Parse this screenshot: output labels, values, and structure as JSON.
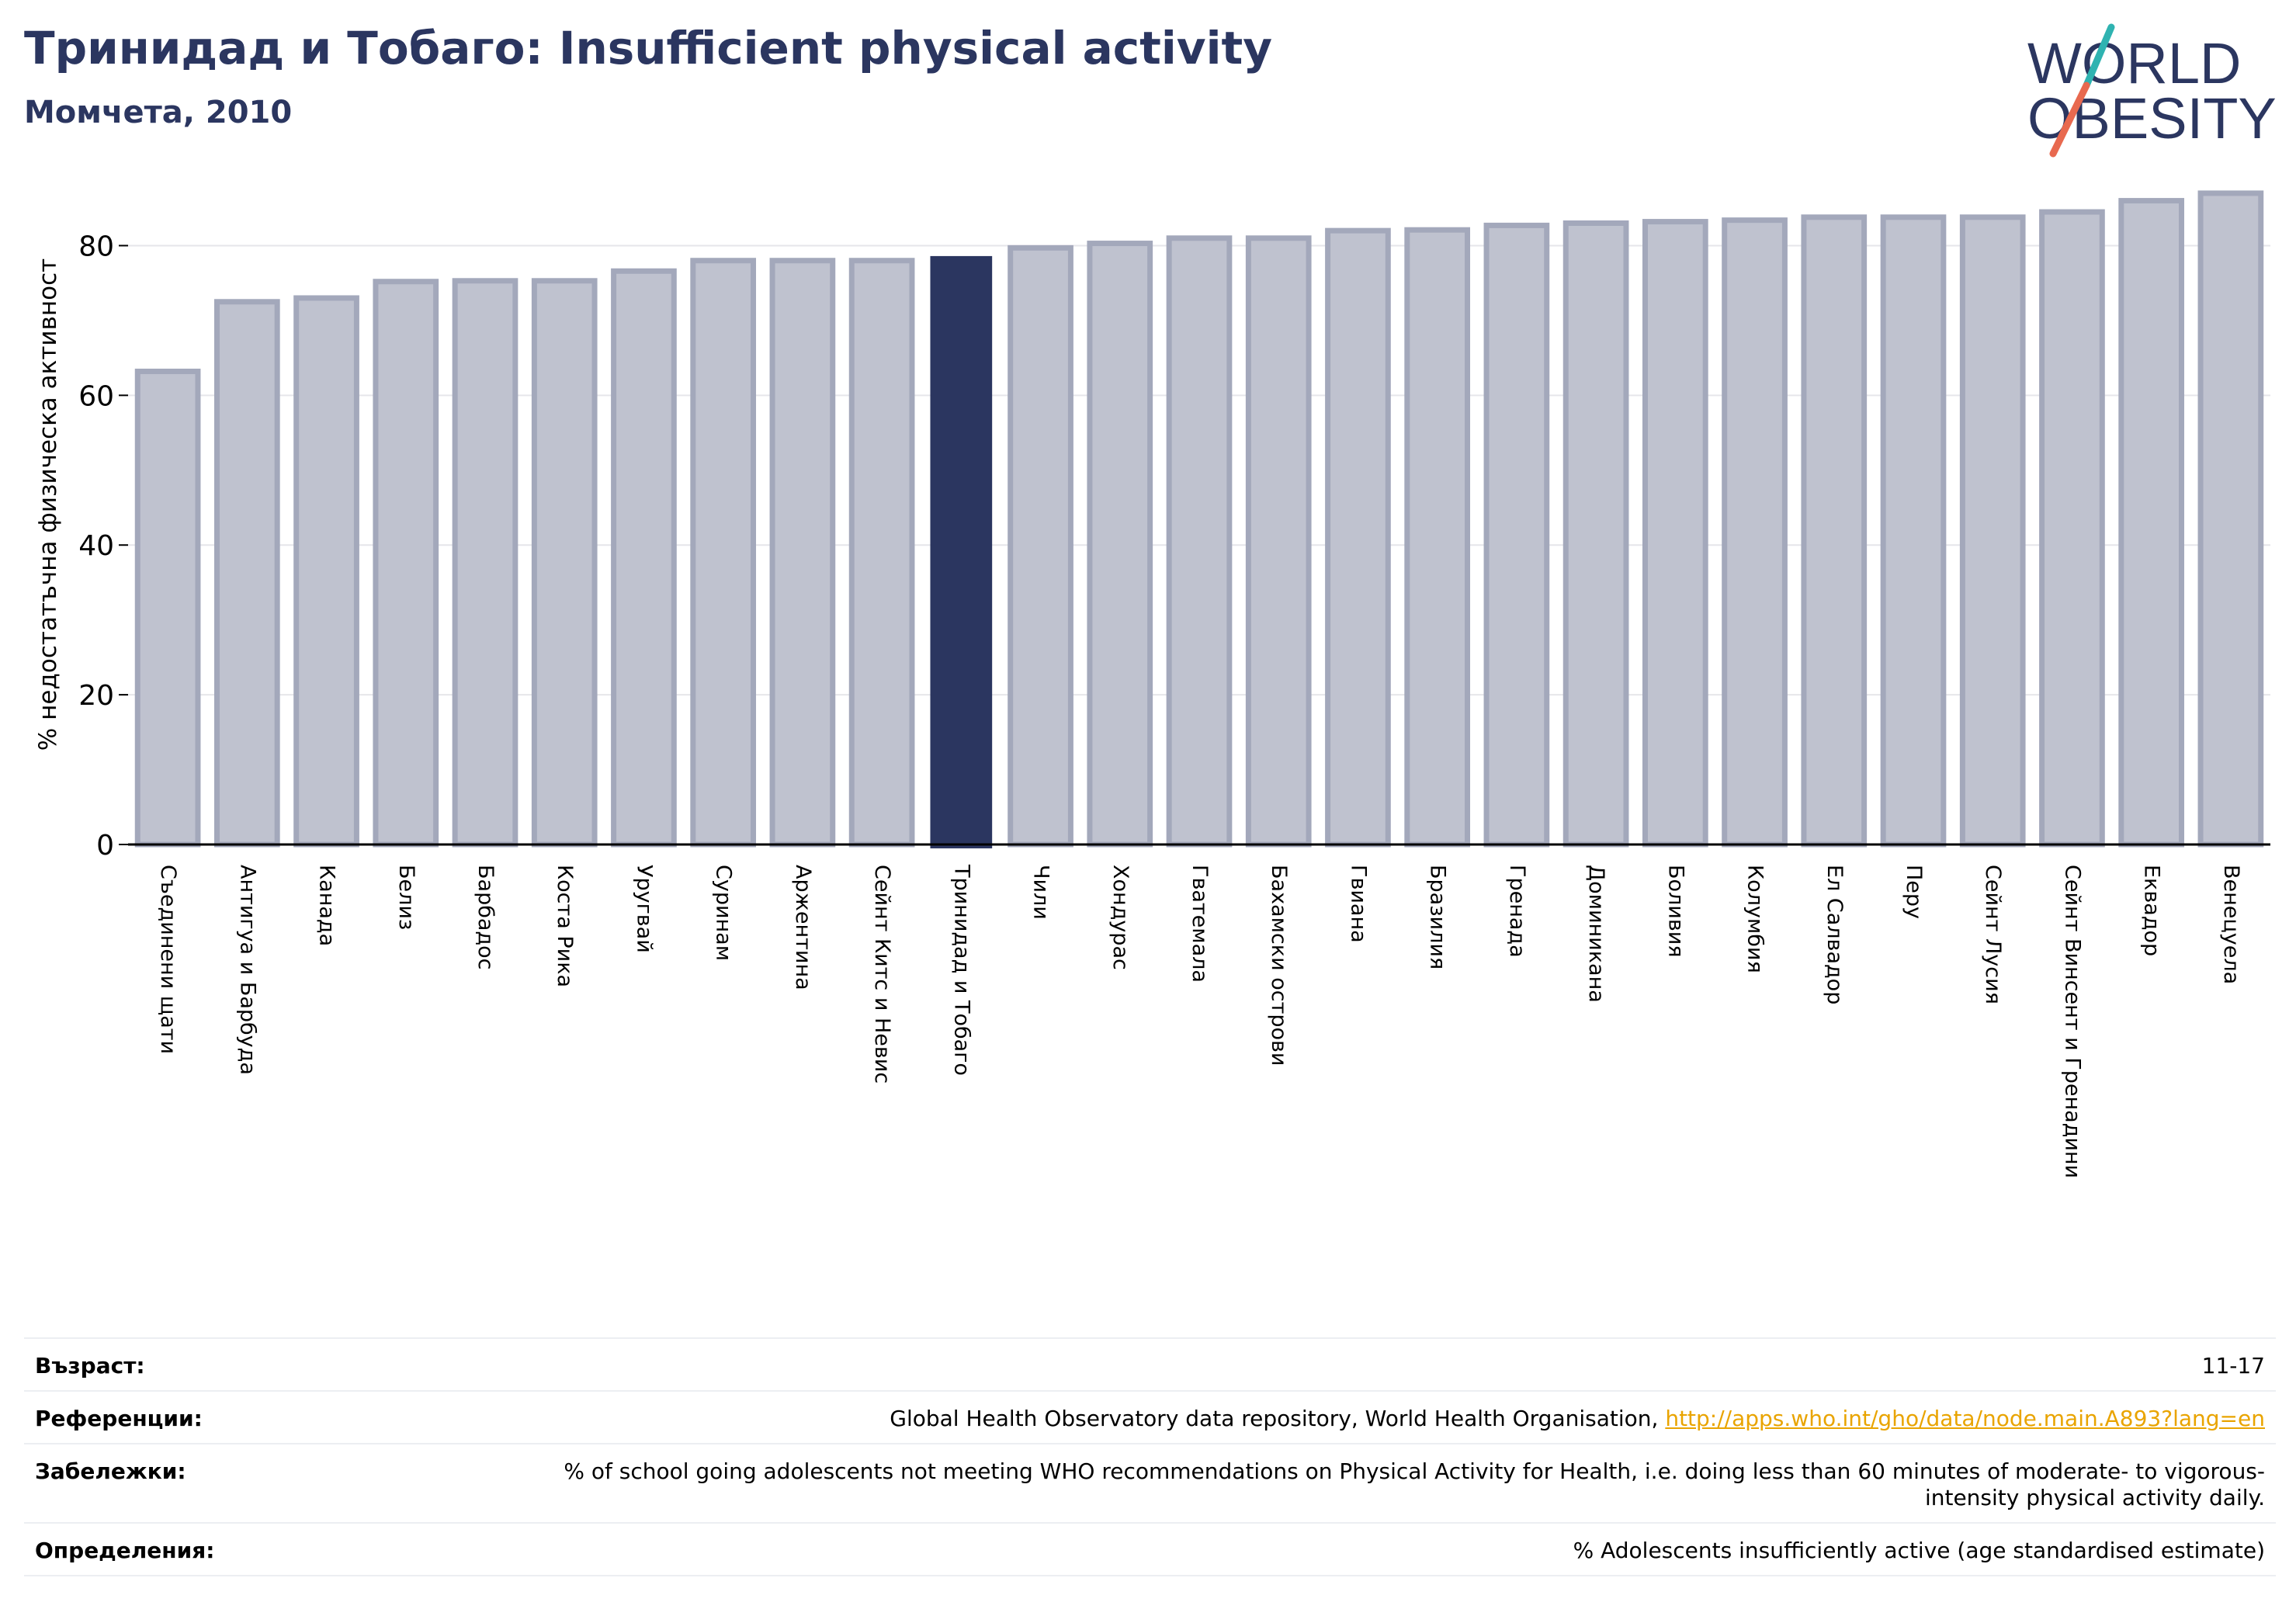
{
  "header": {
    "title": "Тринидад и Тобаго: Insufficient physical activity",
    "subtitle": "Момчета, 2010"
  },
  "logo": {
    "line1": "WORLD",
    "line2": "OBESITY"
  },
  "colors": {
    "bar": "#bfc2cf",
    "bar_edge": "#a3a8bb",
    "highlight": "#2b3660",
    "grid": "#e6e6ea",
    "logo_text": "#2b3660",
    "logo_teal": "#2fb3b1",
    "logo_coral": "#e8694f",
    "link": "#e9a400"
  },
  "chart_data": {
    "type": "bar",
    "title": "Тринидад и Тобаго: Insufficient physical activity",
    "subtitle": "Момчета, 2010",
    "ylabel": "% недостатъчна физическа активност",
    "xlabel": "",
    "ylim": [
      0,
      90
    ],
    "yticks": [
      0,
      20,
      40,
      60,
      80
    ],
    "grid": true,
    "highlight": "Тринидад и Тобаго",
    "categories": [
      "Съединени щати",
      "Антигуа и Барбуда",
      "Канада",
      "Белиз",
      "Барбадос",
      "Коста Рика",
      "Уругвай",
      "Суринам",
      "Аржентина",
      "Сейнт Китс и Невис",
      "Тринидад и Тобаго",
      "Чили",
      "Хондурас",
      "Гватемала",
      "Бахамски острови",
      "Гвиана",
      "Бразилия",
      "Гренада",
      "Доминикана",
      "Боливия",
      "Колумбия",
      "Ел Салвадор",
      "Перу",
      "Сейнт Лусия",
      "Сейнт Винсент и Гренадини",
      "Еквадор",
      "Венецуела"
    ],
    "values": [
      63.2,
      72.5,
      73.0,
      75.2,
      75.3,
      75.3,
      76.6,
      78.0,
      78.0,
      78.0,
      78.5,
      79.7,
      80.3,
      81.0,
      81.0,
      82.0,
      82.1,
      82.7,
      83.0,
      83.2,
      83.4,
      83.8,
      83.8,
      83.8,
      84.5,
      86.0,
      87.0
    ]
  },
  "meta": {
    "age_label": "Възраст:",
    "age_value": "11-17",
    "ref_label": "Референции:",
    "ref_text": "Global Health Observatory data repository, World Health Organisation, ",
    "ref_link": "http://apps.who.int/gho/data/node.main.A893?lang=en",
    "notes_label": "Забележки:",
    "notes_value": "% of school going adolescents not meeting WHO recommendations on Physical Activity for Health, i.e. doing less than 60 minutes of moderate- to vigorous-intensity physical activity daily.",
    "def_label": "Определения:",
    "def_value": "% Adolescents insufficiently active (age standardised estimate)"
  }
}
